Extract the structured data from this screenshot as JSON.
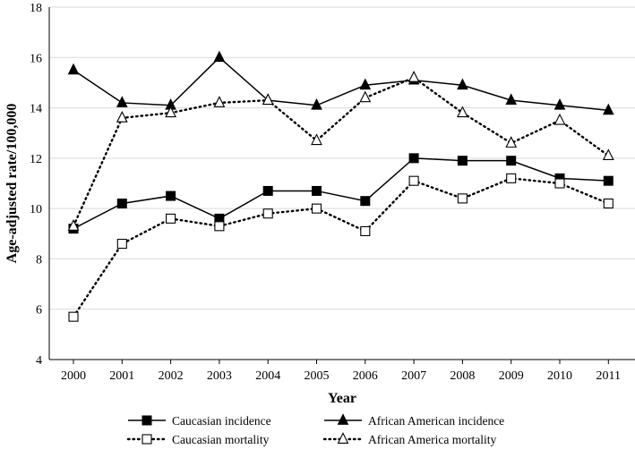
{
  "chart_data": {
    "type": "line",
    "xlabel": "Year",
    "ylabel": "Age-adjusted rate/100,000",
    "ylim": [
      4,
      18
    ],
    "yticks": [
      4,
      6,
      8,
      10,
      12,
      14,
      16,
      18
    ],
    "categories": [
      "2000",
      "2001",
      "2002",
      "2003",
      "2004",
      "2005",
      "2006",
      "2007",
      "2008",
      "2009",
      "2010",
      "2011"
    ],
    "grid": "horizontal",
    "legend_position": "bottom",
    "series": [
      {
        "name": "Caucasian incidence",
        "marker": "square-filled",
        "line": "solid",
        "values": [
          9.2,
          10.2,
          10.5,
          9.6,
          10.7,
          10.7,
          10.3,
          12.0,
          11.9,
          11.9,
          11.2,
          11.1
        ]
      },
      {
        "name": "African American incidence",
        "marker": "triangle-filled",
        "line": "solid",
        "values": [
          15.5,
          14.2,
          14.1,
          16.0,
          14.3,
          14.1,
          14.9,
          15.1,
          14.9,
          14.3,
          14.1,
          13.9
        ]
      },
      {
        "name": "Caucasian mortality",
        "marker": "square-open",
        "line": "dotted",
        "values": [
          5.7,
          8.6,
          9.6,
          9.3,
          9.8,
          10.0,
          9.1,
          11.1,
          10.4,
          11.2,
          11.0,
          10.2
        ]
      },
      {
        "name": "African America mortality",
        "marker": "triangle-open",
        "line": "dotted",
        "values": [
          9.3,
          13.6,
          13.8,
          14.2,
          14.3,
          12.7,
          14.4,
          15.2,
          13.8,
          12.6,
          13.5,
          12.1
        ]
      }
    ]
  }
}
